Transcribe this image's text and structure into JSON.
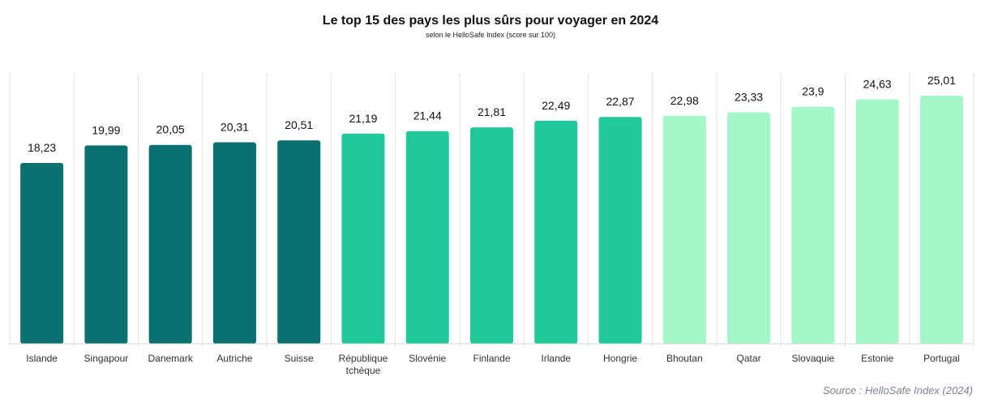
{
  "chart_data": {
    "type": "bar",
    "title": "Le top 15 des pays les plus sûrs pour voyager en 2024",
    "subtitle": "selon le HelloSafe Index (score sur 100)",
    "source": "Source : HelloSafe Index (2024)",
    "xlabel": "",
    "ylabel": "",
    "ylim": [
      0,
      27.3
    ],
    "grid": "vertical separators",
    "categories": [
      "Islande",
      "Singapour",
      "Danemark",
      "Autriche",
      "Suisse",
      "République tchèque",
      "Slovénie",
      "Finlande",
      "Irlande",
      "Hongrie",
      "Bhoutan",
      "Qatar",
      "Slovaquie",
      "Estonie",
      "Portugal"
    ],
    "category_lines": [
      [
        "Islande"
      ],
      [
        "Singapour"
      ],
      [
        "Danemark"
      ],
      [
        "Autriche"
      ],
      [
        "Suisse"
      ],
      [
        "République",
        "tchèque"
      ],
      [
        "Slovénie"
      ],
      [
        "Finlande"
      ],
      [
        "Irlande"
      ],
      [
        "Hongrie"
      ],
      [
        "Bhoutan"
      ],
      [
        "Qatar"
      ],
      [
        "Slovaquie"
      ],
      [
        "Estonie"
      ],
      [
        "Portugal"
      ]
    ],
    "values": [
      18.23,
      19.99,
      20.05,
      20.31,
      20.51,
      21.19,
      21.44,
      21.81,
      22.49,
      22.87,
      22.98,
      23.33,
      23.9,
      24.63,
      25.01
    ],
    "value_labels": [
      "18,23",
      "19,99",
      "20,05",
      "20,31",
      "20,51",
      "21,19",
      "21,44",
      "21,81",
      "22,49",
      "22,87",
      "22,98",
      "23,33",
      "23,9",
      "24,63",
      "25,01"
    ],
    "colors": [
      "#0b7070",
      "#0b7070",
      "#0b7070",
      "#0b7070",
      "#0b7070",
      "#21c99a",
      "#21c99a",
      "#21c99a",
      "#21c99a",
      "#21c99a",
      "#a4f7c7",
      "#a4f7c7",
      "#a4f7c7",
      "#a4f7c7",
      "#a4f7c7"
    ]
  }
}
